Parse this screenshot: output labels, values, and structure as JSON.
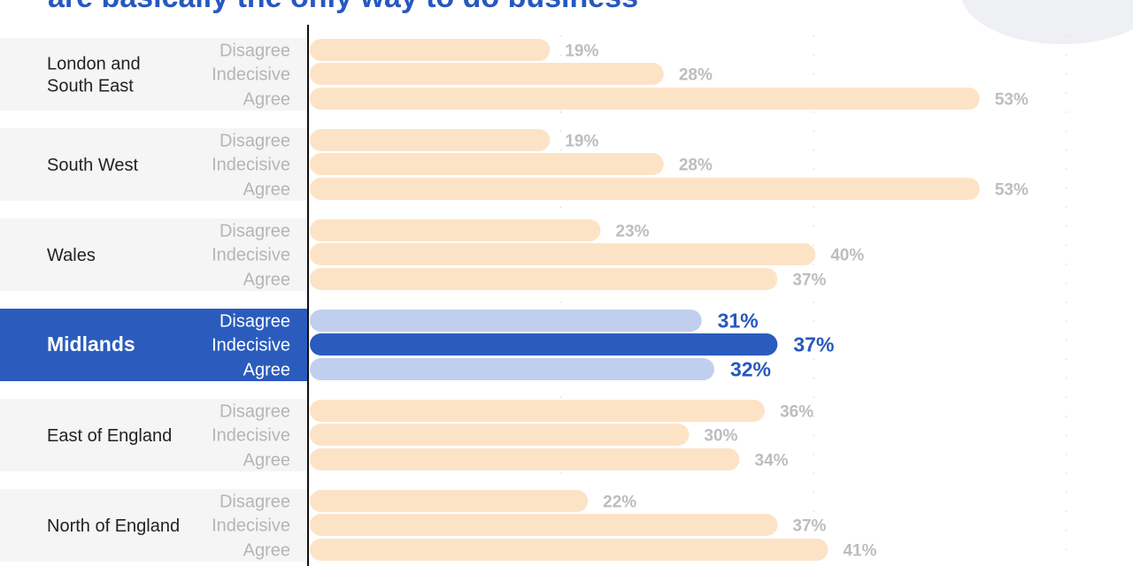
{
  "title": "are basically the only way to do business",
  "colors": {
    "bar": "#fde3c6",
    "bar_highlight_strong": "#2b5cbd",
    "bar_highlight_light": "#c1cfee",
    "panel": "#f5f5f5",
    "panel_highlight": "#2b5cbd",
    "axis": "#111111"
  },
  "chart_data": {
    "type": "bar",
    "orientation": "horizontal",
    "title": "are basically the only way to do business",
    "categories": [
      "Disagree",
      "Indecisive",
      "Agree"
    ],
    "unit": "%",
    "xlim": [
      0,
      60
    ],
    "grid": "vertical dotted",
    "highlight": "Midlands",
    "groups": [
      {
        "name": "London and South East",
        "values": [
          19,
          28,
          53
        ]
      },
      {
        "name": "South West",
        "values": [
          19,
          28,
          53
        ]
      },
      {
        "name": "Wales",
        "values": [
          23,
          40,
          37
        ]
      },
      {
        "name": "Midlands",
        "values": [
          31,
          37,
          32
        ]
      },
      {
        "name": "East of England",
        "values": [
          36,
          30,
          34
        ]
      },
      {
        "name": "North of England",
        "values": [
          22,
          37,
          41
        ]
      }
    ]
  }
}
